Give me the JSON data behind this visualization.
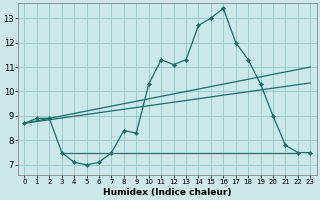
{
  "xlabel": "Humidex (Indice chaleur)",
  "bg_color": "#cce8e8",
  "grid_color": "#99cccc",
  "line_color": "#1a6e6e",
  "xlim": [
    -0.5,
    23.5
  ],
  "ylim": [
    6.6,
    13.6
  ],
  "xticks": [
    0,
    1,
    2,
    3,
    4,
    5,
    6,
    7,
    8,
    9,
    10,
    11,
    12,
    13,
    14,
    15,
    16,
    17,
    18,
    19,
    20,
    21,
    22,
    23
  ],
  "yticks": [
    7,
    8,
    9,
    10,
    11,
    12,
    13
  ],
  "main_x": [
    0,
    1,
    2,
    3,
    4,
    5,
    6,
    7,
    8,
    9,
    10,
    11,
    12,
    13,
    14,
    15,
    16,
    17,
    18,
    19,
    20,
    21,
    22,
    23
  ],
  "main_y": [
    8.7,
    8.9,
    8.9,
    7.5,
    7.1,
    7.0,
    7.1,
    7.5,
    8.4,
    8.3,
    10.3,
    11.3,
    11.1,
    11.3,
    12.7,
    13.0,
    13.4,
    12.0,
    11.3,
    10.3,
    9.0,
    7.8,
    7.5,
    7.5
  ],
  "trend1_x": [
    0,
    23
  ],
  "trend1_y": [
    8.7,
    11.0
  ],
  "trend2_x": [
    0,
    23
  ],
  "trend2_y": [
    8.7,
    10.35
  ],
  "hline_x": [
    3,
    22
  ],
  "hline_y": 7.5,
  "xtick_fontsize": 5.0,
  "ytick_fontsize": 6.0,
  "xlabel_fontsize": 6.5
}
